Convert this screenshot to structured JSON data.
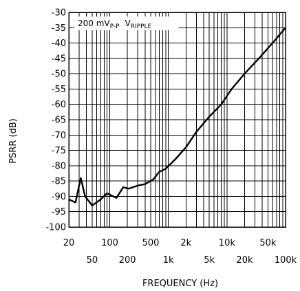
{
  "chart_data": {
    "type": "line",
    "xlabel": "FREQUENCY (Hz)",
    "ylabel": "PSRR (dB)",
    "x_scale": "log",
    "xlim": [
      20,
      100000
    ],
    "ylim": [
      -100,
      -30
    ],
    "grid": true,
    "annotation": {
      "prefix": "200 mV",
      "sub": "P-P",
      "signal": "V",
      "signal_sub": "RIPPLE"
    },
    "y_ticks": [
      "-30",
      "-35",
      "-40",
      "-45",
      "-50",
      "-55",
      "-60",
      "-65",
      "-70",
      "-75",
      "-80",
      "-85",
      "-90",
      "-95",
      "-100"
    ],
    "x_ticks_row1": [
      {
        "v": 20,
        "label": "20"
      },
      {
        "v": 100,
        "label": "100"
      },
      {
        "v": 500,
        "label": "500"
      },
      {
        "v": 2000,
        "label": "2k"
      },
      {
        "v": 10000,
        "label": "10k"
      },
      {
        "v": 50000,
        "label": "50k"
      }
    ],
    "x_ticks_row2": [
      {
        "v": 50,
        "label": "50"
      },
      {
        "v": 200,
        "label": "200"
      },
      {
        "v": 1000,
        "label": "1k"
      },
      {
        "v": 5000,
        "label": "5k"
      },
      {
        "v": 20000,
        "label": "20k"
      },
      {
        "v": 100000,
        "label": "100k"
      }
    ],
    "series": [
      {
        "x": [
          20,
          26,
          32,
          38,
          50,
          70,
          90,
          130,
          170,
          210,
          300,
          400,
          550,
          700,
          900,
          1300,
          2000,
          3000,
          5000,
          8000,
          12000,
          20000,
          35000,
          60000,
          100000
        ],
        "y": [
          -91,
          -92,
          -84,
          -90,
          -93,
          -91,
          -89,
          -90.5,
          -87,
          -87.5,
          -86.5,
          -86,
          -84.5,
          -82,
          -81,
          -78,
          -74,
          -69,
          -64,
          -60,
          -55,
          -50,
          -45,
          -40,
          -35
        ]
      }
    ]
  }
}
